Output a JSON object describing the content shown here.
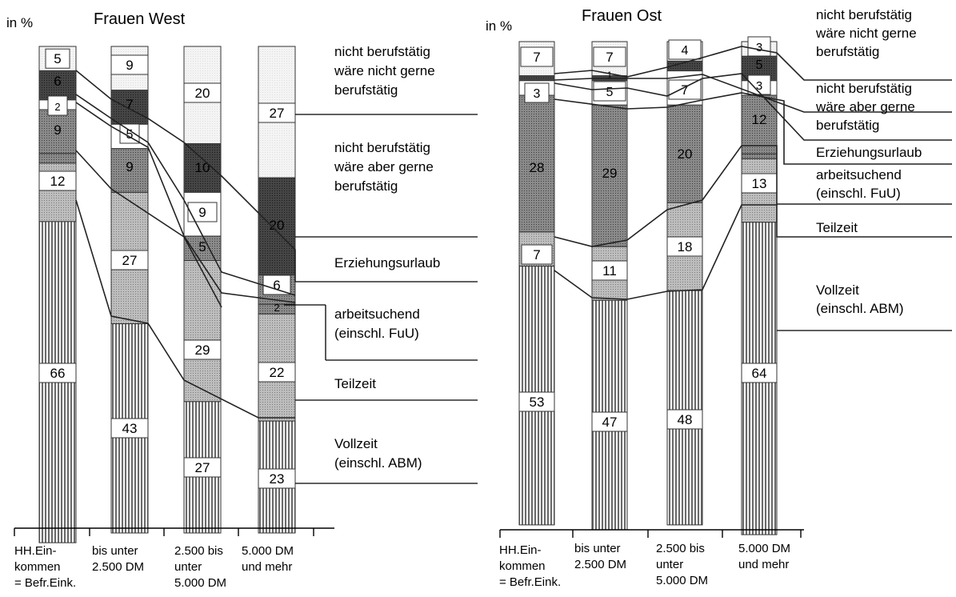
{
  "charts": {
    "west": {
      "title": "Frauen West",
      "unit_label": "in %"
    },
    "ost": {
      "title": "Frauen Ost",
      "unit_label": "in %"
    }
  },
  "colors": {
    "vollzeit": "#8c8c8c",
    "teilzeit": "#c4c4c4",
    "arbeitsuchend": "#9a9a9a",
    "erziehungsurlaub": "#4c4c4c",
    "nicht_gerne": "#f2f2f2",
    "aber_gerne": "#4a4a4a"
  },
  "chart_data": [
    {
      "type": "bar",
      "title": "Frauen West",
      "ylabel": "in %",
      "ylim": [
        0,
        100
      ],
      "categories": [
        "HH.Ein-\nkommen\n= Befr.Eink.",
        "bis unter\n2.500 DM",
        "2.500 bis\nunter\n5.000 DM",
        "5.000 DM\nund mehr"
      ],
      "series": [
        {
          "name": "Vollzeit\n(einschl. ABM)",
          "values": [
            66,
            43,
            27,
            23
          ]
        },
        {
          "name": "Teilzeit",
          "values": [
            12,
            27,
            29,
            22
          ]
        },
        {
          "name": "arbeitsuchend\n(einschl. FuU)",
          "values": [
            null,
            null,
            null,
            2
          ]
        },
        {
          "name": "Erziehungsurlaub",
          "values": [
            9,
            9,
            5,
            6
          ]
        },
        {
          "name": "nicht berufstätig\nwäre aber gerne\nberufstätig",
          "values": [
            6,
            7,
            10,
            20
          ]
        },
        {
          "name": "nicht berufstätig\nwäre nicht gerne\nberufstätig",
          "values": [
            5,
            9,
            20,
            27
          ]
        }
      ],
      "extra_labels": {
        "erz_small_bar1": "2",
        "ag_bar3": "9"
      }
    },
    {
      "type": "bar",
      "title": "Frauen Ost",
      "ylabel": "in %",
      "ylim": [
        0,
        100
      ],
      "categories": [
        "HH.Ein-\nkommen\n= Befr.Eink.",
        "bis unter\n2.500 DM",
        "2.500 bis\nunter\n5.000 DM",
        "5.000 DM\nund mehr"
      ],
      "series": [
        {
          "name": "Vollzeit\n(einschl. ABM)",
          "values": [
            53,
            47,
            48,
            64
          ]
        },
        {
          "name": "Teilzeit",
          "values": [
            7,
            11,
            18,
            13
          ]
        },
        {
          "name": "arbeitsuchend\n(einschl. FuU)",
          "values": [
            28,
            29,
            20,
            12
          ]
        },
        {
          "name": "Erziehungsurlaub",
          "values": [
            3,
            5,
            7,
            3
          ]
        },
        {
          "name": "nicht berufstätig\nwäre aber gerne\nberufstätig",
          "values": [
            null,
            1,
            null,
            5
          ]
        },
        {
          "name": "nicht berufstätig\nwäre nicht gerne\nberufstätig",
          "values": [
            7,
            7,
            4,
            3
          ]
        }
      ]
    }
  ],
  "legend_west": [
    "nicht berufstätig\nwäre nicht gerne\nberufstätig",
    "nicht berufstätig\nwäre aber gerne\nberufstätig",
    "Erziehungsurlaub",
    "arbeitsuchend\n(einschl. FuU)",
    "Teilzeit",
    "Vollzeit\n(einschl. ABM)"
  ],
  "legend_ost": [
    "nicht berufstätig\nwäre nicht gerne\nberufstätig",
    "nicht berufstätig\nwäre aber gerne\nberufstätig",
    "Erziehungsurlaub",
    "arbeitsuchend\n(einschl. FuU)",
    "Teilzeit",
    "Vollzeit\n(einschl. ABM)"
  ]
}
